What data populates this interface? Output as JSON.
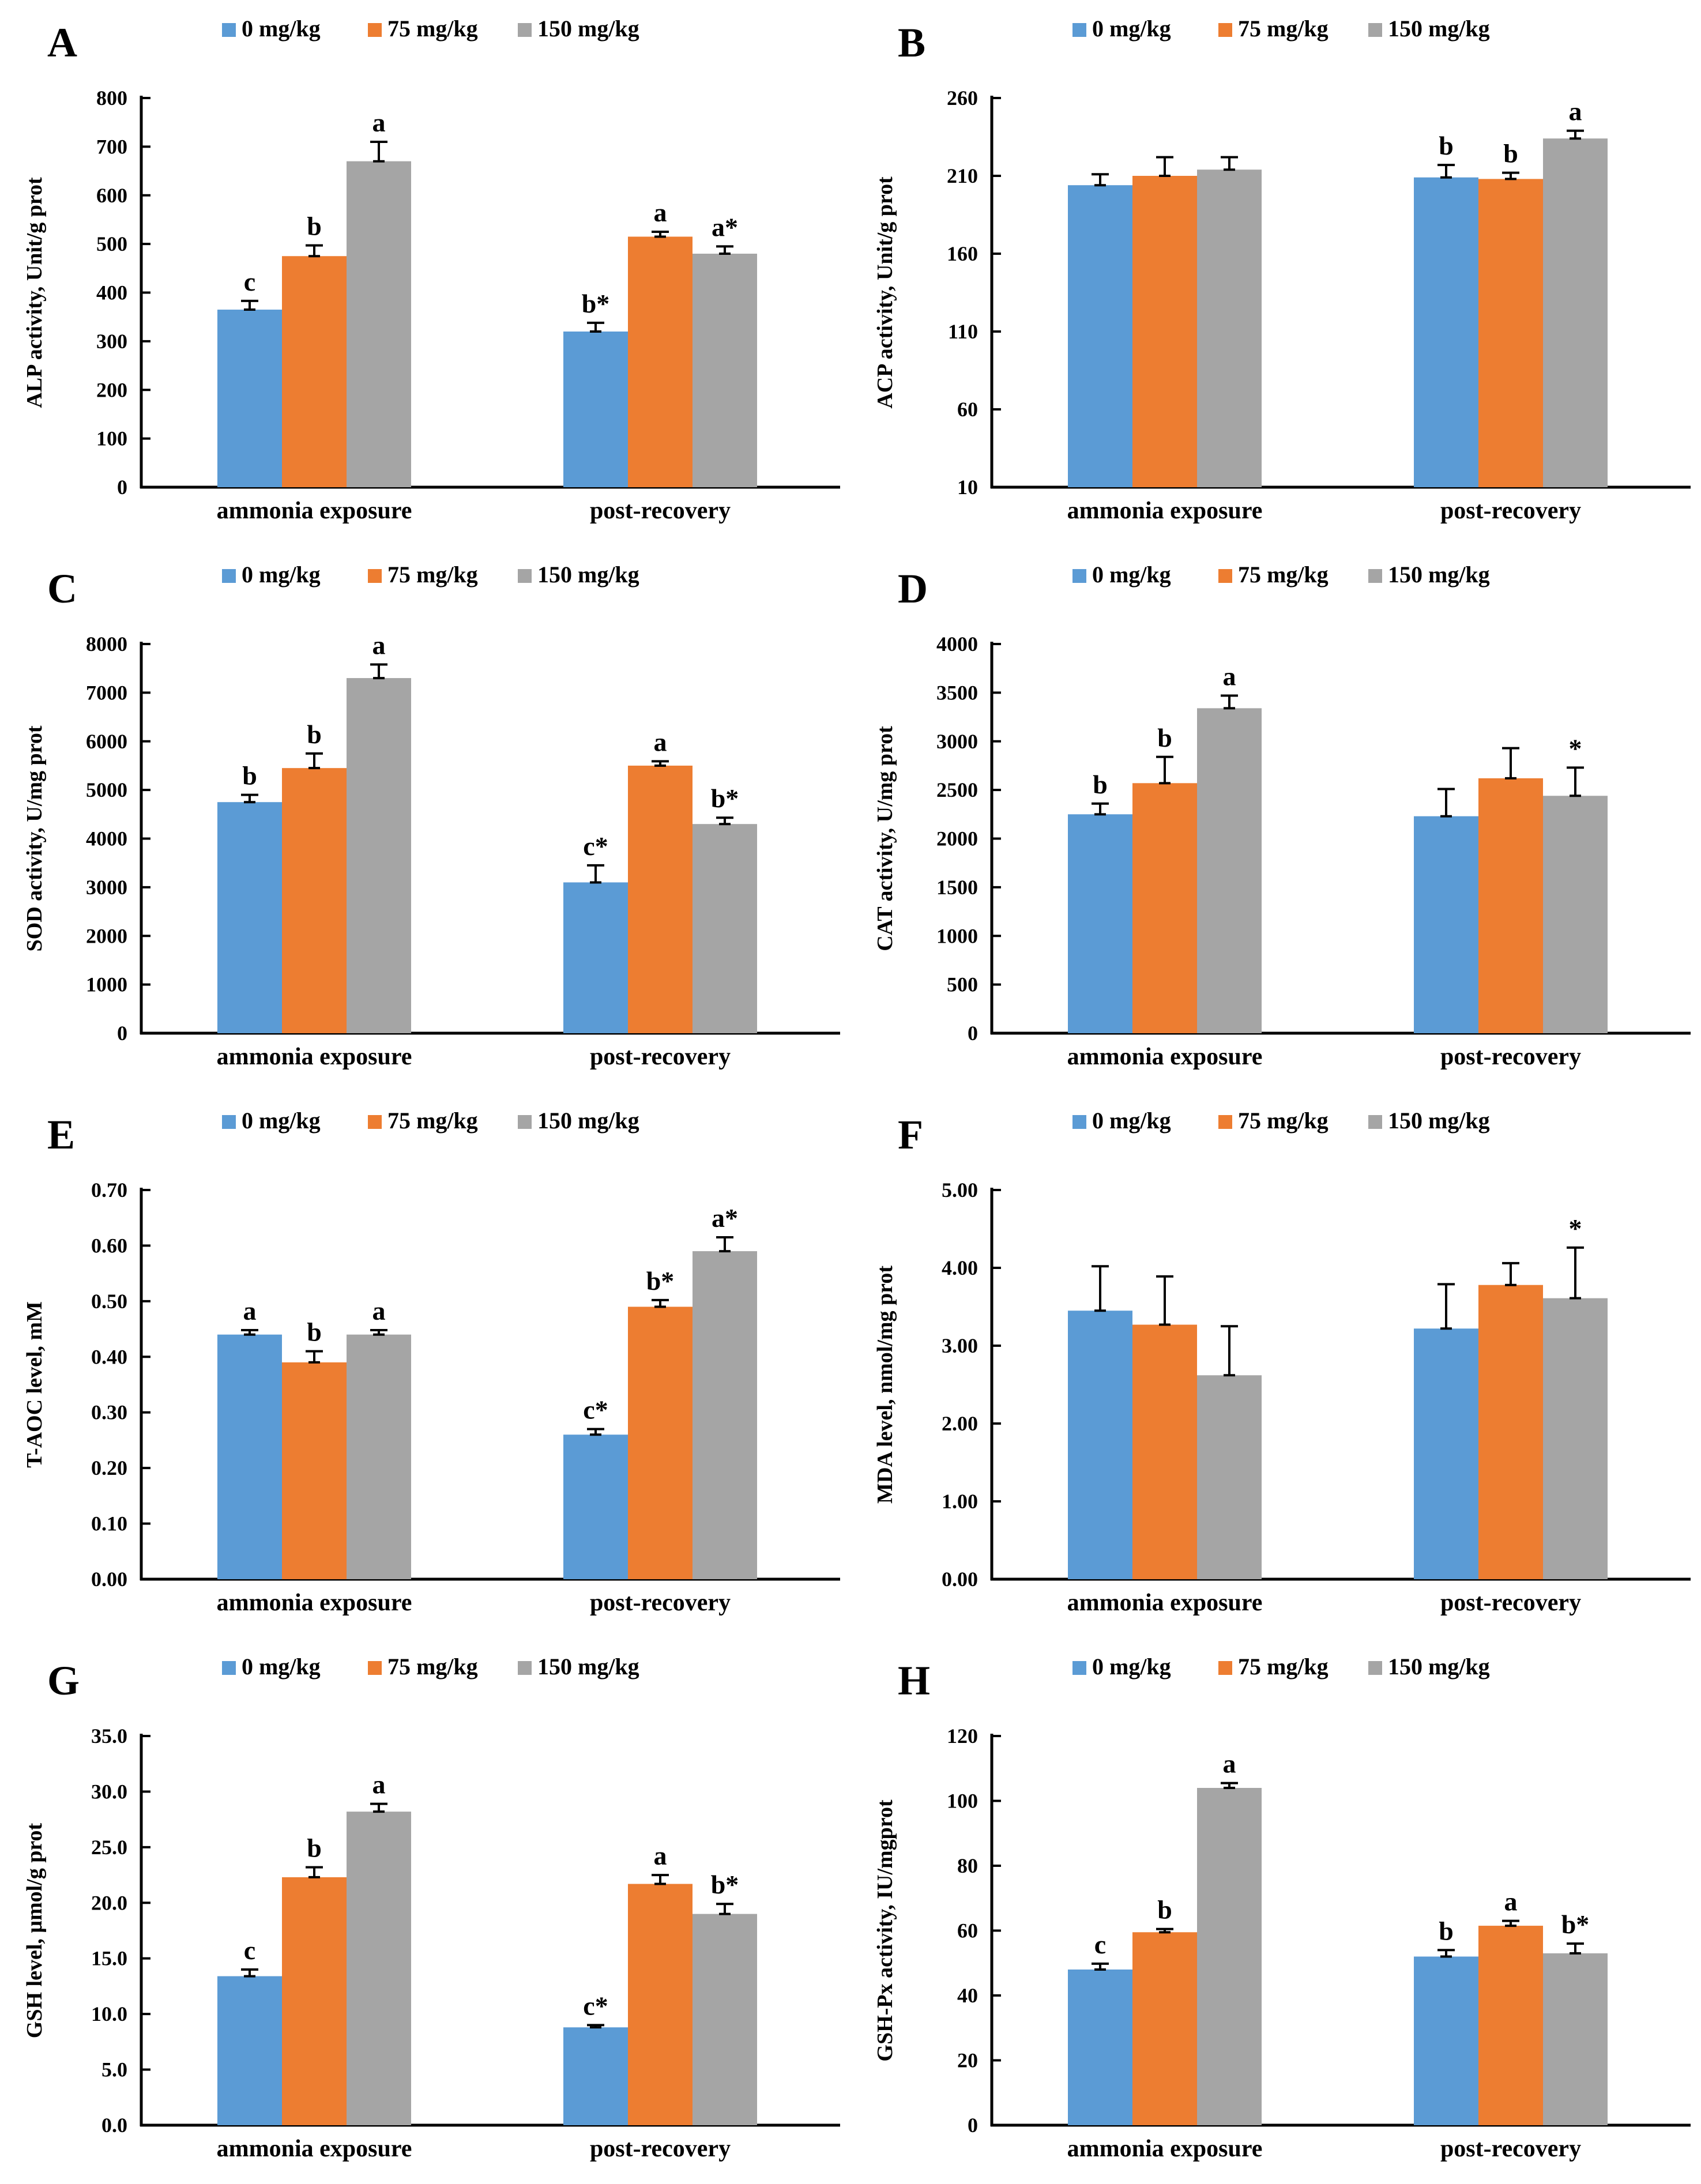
{
  "figure": {
    "legend": [
      "0 mg/kg",
      "75 mg/kg",
      "150 mg/kg"
    ],
    "legend_colors": [
      "#5B9BD5",
      "#ED7D31",
      "#A5A5A5"
    ],
    "categories": [
      "ammonia exposure",
      "post-recovery"
    ],
    "axis_color": "#000000",
    "background": "#ffffff"
  },
  "chart_data": [
    {
      "type": "bar",
      "panel": "A",
      "ylabel": "ALP activity, Unit/g prot",
      "xlabel": "",
      "ylim": [
        0,
        800
      ],
      "ystep": 100,
      "ydecimals": 0,
      "categories": [
        "ammonia exposure",
        "post-recovery"
      ],
      "series": [
        {
          "name": "0 mg/kg",
          "color": "#5B9BD5",
          "values": [
            365,
            320
          ],
          "errors": [
            18,
            18
          ],
          "sig": [
            "c",
            "b*"
          ]
        },
        {
          "name": "75 mg/kg",
          "color": "#ED7D31",
          "values": [
            475,
            515
          ],
          "errors": [
            22,
            10
          ],
          "sig": [
            "b",
            "a"
          ]
        },
        {
          "name": "150 mg/kg",
          "color": "#A5A5A5",
          "values": [
            670,
            480
          ],
          "errors": [
            40,
            15
          ],
          "sig": [
            "a",
            "a*"
          ]
        }
      ]
    },
    {
      "type": "bar",
      "panel": "B",
      "ylabel": "ACP activity, Unit/g prot",
      "xlabel": "",
      "ylim": [
        10,
        260
      ],
      "ystep": 50,
      "ydecimals": 0,
      "categories": [
        "ammonia exposure",
        "post-recovery"
      ],
      "series": [
        {
          "name": "0 mg/kg",
          "color": "#5B9BD5",
          "values": [
            204,
            209
          ],
          "errors": [
            7,
            8
          ],
          "sig": [
            "",
            "b"
          ]
        },
        {
          "name": "75 mg/kg",
          "color": "#ED7D31",
          "values": [
            210,
            208
          ],
          "errors": [
            12,
            4
          ],
          "sig": [
            "",
            "b"
          ]
        },
        {
          "name": "150 mg/kg",
          "color": "#A5A5A5",
          "values": [
            214,
            234
          ],
          "errors": [
            8,
            5
          ],
          "sig": [
            "",
            "a"
          ]
        }
      ]
    },
    {
      "type": "bar",
      "panel": "C",
      "ylabel": "SOD activity, U/mg prot",
      "xlabel": "",
      "ylim": [
        0,
        8000
      ],
      "ystep": 1000,
      "ydecimals": 0,
      "categories": [
        "ammonia exposure",
        "post-recovery"
      ],
      "series": [
        {
          "name": "0 mg/kg",
          "color": "#5B9BD5",
          "values": [
            4750,
            3100
          ],
          "errors": [
            150,
            350
          ],
          "sig": [
            "b",
            "c*"
          ]
        },
        {
          "name": "75 mg/kg",
          "color": "#ED7D31",
          "values": [
            5450,
            5500
          ],
          "errors": [
            300,
            90
          ],
          "sig": [
            "b",
            "a"
          ]
        },
        {
          "name": "150 mg/kg",
          "color": "#A5A5A5",
          "values": [
            7300,
            4300
          ],
          "errors": [
            280,
            130
          ],
          "sig": [
            "a",
            "b*"
          ]
        }
      ]
    },
    {
      "type": "bar",
      "panel": "D",
      "ylabel": "CAT activity, U/mg prot",
      "xlabel": "",
      "ylim": [
        0,
        4000
      ],
      "ystep": 500,
      "ydecimals": 0,
      "categories": [
        "ammonia exposure",
        "post-recovery"
      ],
      "series": [
        {
          "name": "0 mg/kg",
          "color": "#5B9BD5",
          "values": [
            2250,
            2230
          ],
          "errors": [
            110,
            280
          ],
          "sig": [
            "b",
            ""
          ]
        },
        {
          "name": "75 mg/kg",
          "color": "#ED7D31",
          "values": [
            2570,
            2620
          ],
          "errors": [
            270,
            310
          ],
          "sig": [
            "b",
            ""
          ]
        },
        {
          "name": "150 mg/kg",
          "color": "#A5A5A5",
          "values": [
            3340,
            2440
          ],
          "errors": [
            130,
            290
          ],
          "sig": [
            "a",
            "*"
          ]
        }
      ]
    },
    {
      "type": "bar",
      "panel": "E",
      "ylabel": "T-AOC level, mM",
      "xlabel": "",
      "ylim": [
        0,
        0.7
      ],
      "ystep": 0.1,
      "ydecimals": 2,
      "categories": [
        "ammonia exposure",
        "post-recovery"
      ],
      "series": [
        {
          "name": "0 mg/kg",
          "color": "#5B9BD5",
          "values": [
            0.44,
            0.26
          ],
          "errors": [
            0.008,
            0.01
          ],
          "sig": [
            "a",
            "c*"
          ]
        },
        {
          "name": "75 mg/kg",
          "color": "#ED7D31",
          "values": [
            0.39,
            0.49
          ],
          "errors": [
            0.02,
            0.012
          ],
          "sig": [
            "b",
            "b*"
          ]
        },
        {
          "name": "150 mg/kg",
          "color": "#A5A5A5",
          "values": [
            0.44,
            0.59
          ],
          "errors": [
            0.008,
            0.025
          ],
          "sig": [
            "a",
            "a*"
          ]
        }
      ]
    },
    {
      "type": "bar",
      "panel": "F",
      "ylabel": "MDA level, nmol/mg prot",
      "xlabel": "",
      "ylim": [
        0,
        5
      ],
      "ystep": 1,
      "ydecimals": 2,
      "categories": [
        "ammonia exposure",
        "post-recovery"
      ],
      "series": [
        {
          "name": "0 mg/kg",
          "color": "#5B9BD5",
          "values": [
            3.45,
            3.22
          ],
          "errors": [
            0.57,
            0.57
          ],
          "sig": [
            "",
            ""
          ]
        },
        {
          "name": "75 mg/kg",
          "color": "#ED7D31",
          "values": [
            3.27,
            3.78
          ],
          "errors": [
            0.62,
            0.28
          ],
          "sig": [
            "",
            ""
          ]
        },
        {
          "name": "150 mg/kg",
          "color": "#A5A5A5",
          "values": [
            2.62,
            3.61
          ],
          "errors": [
            0.63,
            0.65
          ],
          "sig": [
            "",
            "*"
          ]
        }
      ]
    },
    {
      "type": "bar",
      "panel": "G",
      "ylabel": "GSH level, μmol/g prot",
      "xlabel": "",
      "ylim": [
        0,
        35
      ],
      "ystep": 5,
      "ydecimals": 1,
      "categories": [
        "ammonia exposure",
        "post-recovery"
      ],
      "series": [
        {
          "name": "0 mg/kg",
          "color": "#5B9BD5",
          "values": [
            13.4,
            8.8
          ],
          "errors": [
            0.6,
            0.2
          ],
          "sig": [
            "c",
            "c*"
          ]
        },
        {
          "name": "75 mg/kg",
          "color": "#ED7D31",
          "values": [
            22.3,
            21.7
          ],
          "errors": [
            0.9,
            0.8
          ],
          "sig": [
            "b",
            "a"
          ]
        },
        {
          "name": "150 mg/kg",
          "color": "#A5A5A5",
          "values": [
            28.2,
            19.0
          ],
          "errors": [
            0.7,
            0.9
          ],
          "sig": [
            "a",
            "b*"
          ]
        }
      ]
    },
    {
      "type": "bar",
      "panel": "H",
      "ylabel": "GSH-Px activity, IU/mgprot",
      "xlabel": "",
      "ylim": [
        0,
        120
      ],
      "ystep": 20,
      "ydecimals": 0,
      "categories": [
        "ammonia exposure",
        "post-recovery"
      ],
      "series": [
        {
          "name": "0 mg/kg",
          "color": "#5B9BD5",
          "values": [
            48,
            52
          ],
          "errors": [
            1.8,
            2
          ],
          "sig": [
            "c",
            "b"
          ]
        },
        {
          "name": "75 mg/kg",
          "color": "#ED7D31",
          "values": [
            59.5,
            61.5
          ],
          "errors": [
            1,
            1.5
          ],
          "sig": [
            "b",
            "a"
          ]
        },
        {
          "name": "150 mg/kg",
          "color": "#A5A5A5",
          "values": [
            104,
            53
          ],
          "errors": [
            1.5,
            3
          ],
          "sig": [
            "a",
            "b*"
          ]
        }
      ]
    }
  ]
}
